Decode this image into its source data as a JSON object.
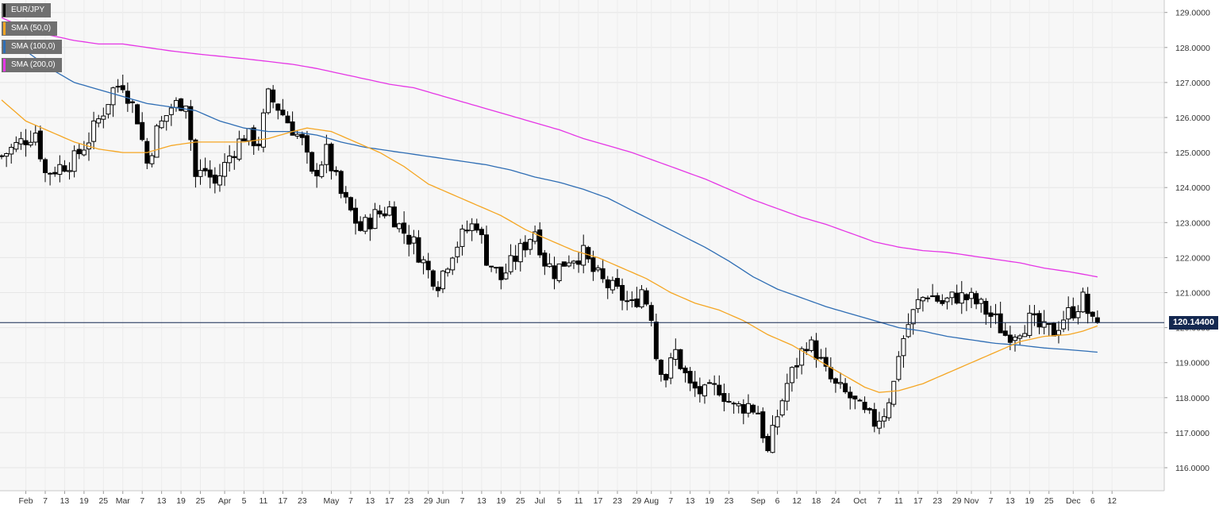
{
  "chart_data": {
    "type": "candlestick",
    "symbol": "EUR/JPY",
    "y_range": [
      115.7,
      129.2
    ],
    "y_ticks": [
      "116.0000",
      "117.0000",
      "118.0000",
      "119.0000",
      "120.0000",
      "121.0000",
      "122.0000",
      "123.0000",
      "124.0000",
      "125.0000",
      "126.0000",
      "127.0000",
      "128.0000",
      "129.0000"
    ],
    "last_price": 120.144,
    "last_price_label": "120.14400",
    "x_ticks": [
      {
        "label": "Feb",
        "i": 5
      },
      {
        "label": "7",
        "i": 9
      },
      {
        "label": "13",
        "i": 13
      },
      {
        "label": "19",
        "i": 17
      },
      {
        "label": "25",
        "i": 21
      },
      {
        "label": "Mar",
        "i": 25
      },
      {
        "label": "7",
        "i": 29
      },
      {
        "label": "13",
        "i": 33
      },
      {
        "label": "19",
        "i": 37
      },
      {
        "label": "25",
        "i": 41
      },
      {
        "label": "Apr",
        "i": 46
      },
      {
        "label": "5",
        "i": 50
      },
      {
        "label": "11",
        "i": 54
      },
      {
        "label": "17",
        "i": 58
      },
      {
        "label": "23",
        "i": 62
      },
      {
        "label": "May",
        "i": 68
      },
      {
        "label": "7",
        "i": 72
      },
      {
        "label": "13",
        "i": 76
      },
      {
        "label": "17",
        "i": 80
      },
      {
        "label": "23",
        "i": 84
      },
      {
        "label": "29",
        "i": 88
      },
      {
        "label": "Jun",
        "i": 91
      },
      {
        "label": "7",
        "i": 95
      },
      {
        "label": "13",
        "i": 99
      },
      {
        "label": "19",
        "i": 103
      },
      {
        "label": "25",
        "i": 107
      },
      {
        "label": "Jul",
        "i": 111
      },
      {
        "label": "5",
        "i": 115
      },
      {
        "label": "11",
        "i": 119
      },
      {
        "label": "17",
        "i": 123
      },
      {
        "label": "23",
        "i": 127
      },
      {
        "label": "29",
        "i": 131
      },
      {
        "label": "Aug",
        "i": 134
      },
      {
        "label": "7",
        "i": 138
      },
      {
        "label": "13",
        "i": 142
      },
      {
        "label": "19",
        "i": 146
      },
      {
        "label": "23",
        "i": 150
      },
      {
        "label": "Sep",
        "i": 156
      },
      {
        "label": "6",
        "i": 160
      },
      {
        "label": "12",
        "i": 164
      },
      {
        "label": "18",
        "i": 168
      },
      {
        "label": "24",
        "i": 172
      },
      {
        "label": "Oct",
        "i": 177
      },
      {
        "label": "7",
        "i": 181
      },
      {
        "label": "11",
        "i": 185
      },
      {
        "label": "17",
        "i": 189
      },
      {
        "label": "23",
        "i": 193
      },
      {
        "label": "29",
        "i": 197
      },
      {
        "label": "Nov",
        "i": 200
      },
      {
        "label": "7",
        "i": 204
      },
      {
        "label": "13",
        "i": 208
      },
      {
        "label": "19",
        "i": 212
      },
      {
        "label": "25",
        "i": 216
      },
      {
        "label": "Dec",
        "i": 221
      },
      {
        "label": "6",
        "i": 225
      },
      {
        "label": "12",
        "i": 229
      }
    ],
    "series": [
      {
        "name": "EUR/JPY",
        "color": "#000000"
      },
      {
        "name": "SMA (50,0)",
        "color": "#f5a623"
      },
      {
        "name": "SMA (100,0)",
        "color": "#2e6db4"
      },
      {
        "name": "SMA (200,0)",
        "color": "#e535e5"
      }
    ],
    "close_path": [
      [
        0,
        124.9
      ],
      [
        4,
        125.3
      ],
      [
        7,
        125.6
      ],
      [
        9,
        124.4
      ],
      [
        12,
        124.6
      ],
      [
        15,
        124.8
      ],
      [
        18,
        125.4
      ],
      [
        21,
        126.2
      ],
      [
        23,
        126.8
      ],
      [
        25,
        127.0
      ],
      [
        28,
        126.0
      ],
      [
        30,
        124.7
      ],
      [
        32,
        125.6
      ],
      [
        35,
        126.3
      ],
      [
        38,
        126.5
      ],
      [
        40,
        124.3
      ],
      [
        42,
        124.5
      ],
      [
        44,
        124.1
      ],
      [
        47,
        124.9
      ],
      [
        50,
        125.5
      ],
      [
        53,
        125.3
      ],
      [
        55,
        126.6
      ],
      [
        57,
        126.3
      ],
      [
        59,
        125.9
      ],
      [
        62,
        125.3
      ],
      [
        64,
        124.3
      ],
      [
        67,
        125.0
      ],
      [
        70,
        123.8
      ],
      [
        72,
        123.3
      ],
      [
        74,
        122.8
      ],
      [
        77,
        123.2
      ],
      [
        80,
        123.4
      ],
      [
        82,
        122.9
      ],
      [
        85,
        122.4
      ],
      [
        88,
        121.6
      ],
      [
        90,
        121.3
      ],
      [
        93,
        122.2
      ],
      [
        96,
        122.8
      ],
      [
        98,
        123.0
      ],
      [
        100,
        122.0
      ],
      [
        103,
        121.4
      ],
      [
        106,
        122.0
      ],
      [
        108,
        122.4
      ],
      [
        110,
        122.8
      ],
      [
        112,
        121.9
      ],
      [
        114,
        121.6
      ],
      [
        117,
        122.0
      ],
      [
        120,
        122.1
      ],
      [
        122,
        121.6
      ],
      [
        124,
        121.3
      ],
      [
        127,
        121.0
      ],
      [
        130,
        120.6
      ],
      [
        132,
        121.1
      ],
      [
        134,
        120.4
      ],
      [
        135,
        119.2
      ],
      [
        137,
        118.6
      ],
      [
        139,
        119.3
      ],
      [
        142,
        118.3
      ],
      [
        145,
        118.1
      ],
      [
        148,
        118.3
      ],
      [
        151,
        117.7
      ],
      [
        154,
        117.8
      ],
      [
        156,
        117.6
      ],
      [
        158,
        116.4
      ],
      [
        160,
        117.5
      ],
      [
        162,
        118.4
      ],
      [
        164,
        119.0
      ],
      [
        166,
        119.6
      ],
      [
        168,
        119.3
      ],
      [
        170,
        118.7
      ],
      [
        172,
        118.3
      ],
      [
        175,
        118.0
      ],
      [
        178,
        117.5
      ],
      [
        180,
        117.3
      ],
      [
        182,
        117.6
      ],
      [
        184,
        118.4
      ],
      [
        185,
        119.3
      ],
      [
        187,
        120.1
      ],
      [
        189,
        120.7
      ],
      [
        191,
        121.0
      ],
      [
        194,
        120.7
      ],
      [
        197,
        120.9
      ],
      [
        200,
        120.8
      ],
      [
        202,
        120.6
      ],
      [
        205,
        120.2
      ],
      [
        207,
        119.8
      ],
      [
        209,
        119.9
      ],
      [
        212,
        120.2
      ],
      [
        215,
        119.9
      ],
      [
        217,
        119.9
      ],
      [
        219,
        120.3
      ],
      [
        221,
        120.5
      ],
      [
        223,
        120.8
      ],
      [
        225,
        120.1
      ],
      [
        226,
        120.144
      ]
    ],
    "sma50_path": [
      [
        0,
        126.5
      ],
      [
        5,
        125.9
      ],
      [
        10,
        125.6
      ],
      [
        15,
        125.3
      ],
      [
        20,
        125.1
      ],
      [
        25,
        125.0
      ],
      [
        30,
        125.0
      ],
      [
        35,
        125.2
      ],
      [
        40,
        125.3
      ],
      [
        45,
        125.3
      ],
      [
        50,
        125.3
      ],
      [
        55,
        125.4
      ],
      [
        60,
        125.6
      ],
      [
        63,
        125.7
      ],
      [
        68,
        125.6
      ],
      [
        73,
        125.3
      ],
      [
        78,
        125.0
      ],
      [
        83,
        124.6
      ],
      [
        88,
        124.1
      ],
      [
        93,
        123.8
      ],
      [
        98,
        123.5
      ],
      [
        103,
        123.2
      ],
      [
        108,
        122.8
      ],
      [
        113,
        122.5
      ],
      [
        118,
        122.2
      ],
      [
        123,
        122.0
      ],
      [
        128,
        121.7
      ],
      [
        133,
        121.4
      ],
      [
        138,
        121.0
      ],
      [
        143,
        120.7
      ],
      [
        148,
        120.5
      ],
      [
        153,
        120.2
      ],
      [
        158,
        119.8
      ],
      [
        163,
        119.5
      ],
      [
        168,
        119.1
      ],
      [
        173,
        118.7
      ],
      [
        178,
        118.3
      ],
      [
        181,
        118.15
      ],
      [
        185,
        118.2
      ],
      [
        190,
        118.4
      ],
      [
        195,
        118.7
      ],
      [
        200,
        119.0
      ],
      [
        205,
        119.3
      ],
      [
        210,
        119.6
      ],
      [
        215,
        119.75
      ],
      [
        220,
        119.8
      ],
      [
        223,
        119.9
      ],
      [
        226,
        120.05
      ]
    ],
    "sma100_path": [
      [
        0,
        128.2
      ],
      [
        5,
        127.9
      ],
      [
        10,
        127.4
      ],
      [
        15,
        127.0
      ],
      [
        20,
        126.8
      ],
      [
        25,
        126.6
      ],
      [
        30,
        126.4
      ],
      [
        35,
        126.3
      ],
      [
        40,
        126.2
      ],
      [
        45,
        125.9
      ],
      [
        50,
        125.7
      ],
      [
        55,
        125.6
      ],
      [
        60,
        125.6
      ],
      [
        65,
        125.5
      ],
      [
        70,
        125.3
      ],
      [
        75,
        125.15
      ],
      [
        80,
        125.05
      ],
      [
        85,
        124.95
      ],
      [
        90,
        124.85
      ],
      [
        95,
        124.75
      ],
      [
        100,
        124.65
      ],
      [
        105,
        124.5
      ],
      [
        110,
        124.3
      ],
      [
        115,
        124.15
      ],
      [
        120,
        123.95
      ],
      [
        125,
        123.7
      ],
      [
        130,
        123.35
      ],
      [
        135,
        123.0
      ],
      [
        140,
        122.65
      ],
      [
        145,
        122.3
      ],
      [
        150,
        121.9
      ],
      [
        155,
        121.45
      ],
      [
        160,
        121.1
      ],
      [
        165,
        120.85
      ],
      [
        170,
        120.6
      ],
      [
        175,
        120.4
      ],
      [
        180,
        120.2
      ],
      [
        185,
        120.0
      ],
      [
        190,
        119.9
      ],
      [
        195,
        119.75
      ],
      [
        200,
        119.65
      ],
      [
        205,
        119.55
      ],
      [
        210,
        119.5
      ],
      [
        215,
        119.42
      ],
      [
        220,
        119.37
      ],
      [
        226,
        119.3
      ]
    ],
    "sma200_path": [
      [
        0,
        128.85
      ],
      [
        5,
        128.55
      ],
      [
        10,
        128.35
      ],
      [
        15,
        128.2
      ],
      [
        20,
        128.1
      ],
      [
        25,
        128.1
      ],
      [
        30,
        128.0
      ],
      [
        35,
        127.9
      ],
      [
        40,
        127.82
      ],
      [
        45,
        127.75
      ],
      [
        50,
        127.68
      ],
      [
        55,
        127.6
      ],
      [
        60,
        127.52
      ],
      [
        65,
        127.4
      ],
      [
        70,
        127.25
      ],
      [
        75,
        127.1
      ],
      [
        80,
        126.95
      ],
      [
        85,
        126.85
      ],
      [
        90,
        126.65
      ],
      [
        95,
        126.45
      ],
      [
        100,
        126.25
      ],
      [
        105,
        126.05
      ],
      [
        110,
        125.85
      ],
      [
        115,
        125.65
      ],
      [
        120,
        125.4
      ],
      [
        125,
        125.2
      ],
      [
        130,
        125.0
      ],
      [
        135,
        124.75
      ],
      [
        140,
        124.5
      ],
      [
        145,
        124.25
      ],
      [
        150,
        123.95
      ],
      [
        155,
        123.65
      ],
      [
        160,
        123.4
      ],
      [
        165,
        123.15
      ],
      [
        170,
        122.95
      ],
      [
        175,
        122.7
      ],
      [
        180,
        122.45
      ],
      [
        185,
        122.3
      ],
      [
        190,
        122.2
      ],
      [
        195,
        122.15
      ],
      [
        200,
        122.05
      ],
      [
        205,
        121.95
      ],
      [
        210,
        121.85
      ],
      [
        215,
        121.7
      ],
      [
        220,
        121.6
      ],
      [
        226,
        121.45
      ]
    ]
  }
}
